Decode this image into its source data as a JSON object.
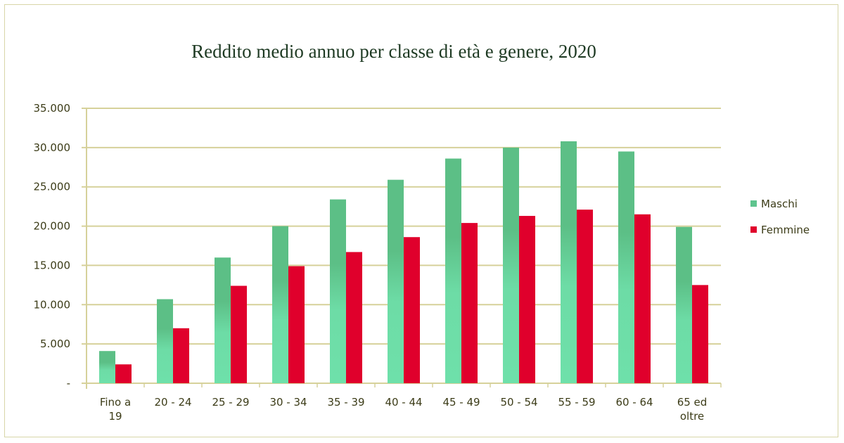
{
  "chart_data": {
    "type": "bar",
    "title": "Reddito medio annuo per classe di età e genere, 2020",
    "categories": [
      [
        "Fino a",
        "19"
      ],
      [
        "20 - 24"
      ],
      [
        "25 - 29"
      ],
      [
        "30 - 34"
      ],
      [
        "35 - 39"
      ],
      [
        "40 - 44"
      ],
      [
        "45 - 49"
      ],
      [
        "50 - 54"
      ],
      [
        "55 - 59"
      ],
      [
        "60 - 64"
      ],
      [
        "65 ed",
        "oltre"
      ]
    ],
    "series": [
      {
        "name": "Maschi",
        "color": "#5ec48e",
        "values": [
          4100,
          10700,
          16000,
          20000,
          23400,
          25900,
          28600,
          30000,
          30800,
          29500,
          19900
        ]
      },
      {
        "name": "Femmine",
        "color": "#e0002c",
        "values": [
          2400,
          7000,
          12400,
          14900,
          16700,
          18600,
          20400,
          21300,
          22100,
          21500,
          12500
        ]
      }
    ],
    "yticks": [
      "-",
      "5.000",
      "10.000",
      "15.000",
      "20.000",
      "25.000",
      "30.000",
      "35.000"
    ],
    "ylim": [
      0,
      35000
    ],
    "grid": true,
    "legend": "right"
  }
}
